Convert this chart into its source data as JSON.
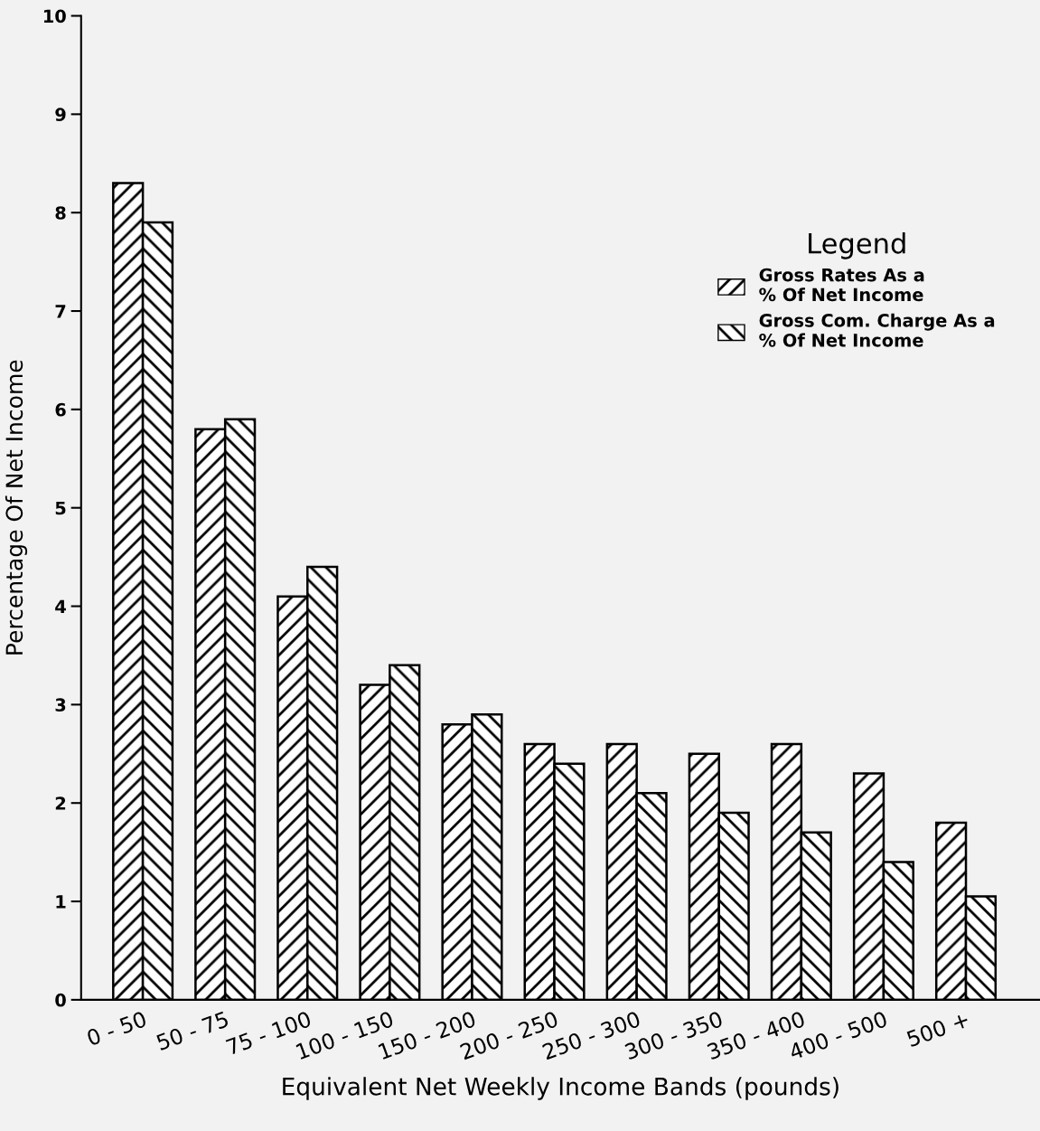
{
  "chart_data": {
    "type": "bar",
    "xlabel": "Equivalent Net Weekly Income Bands (pounds)",
    "ylabel": "Percentage Of Net Income",
    "legend_title": "Legend",
    "legend": "right",
    "categories": [
      "0 - 50",
      "50 - 75",
      "75 - 100",
      "100 - 150",
      "150 - 200",
      "200 - 250",
      "250 - 300",
      "300 - 350",
      "350 - 400",
      "400 - 500",
      "500 +"
    ],
    "series": [
      {
        "name": "Gross Rates As a\n% Of Net Income",
        "color": "#000000",
        "values": [
          8.3,
          5.8,
          4.1,
          3.2,
          2.8,
          2.6,
          2.6,
          2.5,
          2.6,
          2.3,
          1.8
        ]
      },
      {
        "name": "Gross Com. Charge As a\n% Of Net Income",
        "color": "#000000",
        "values": [
          7.9,
          5.9,
          4.4,
          3.4,
          2.9,
          2.4,
          2.1,
          1.9,
          1.7,
          1.4,
          1.05
        ]
      }
    ],
    "ylim": [
      0,
      10
    ],
    "yticks": [
      0,
      1,
      2,
      3,
      4,
      5,
      6,
      7,
      8,
      9,
      10
    ],
    "grid": false
  }
}
